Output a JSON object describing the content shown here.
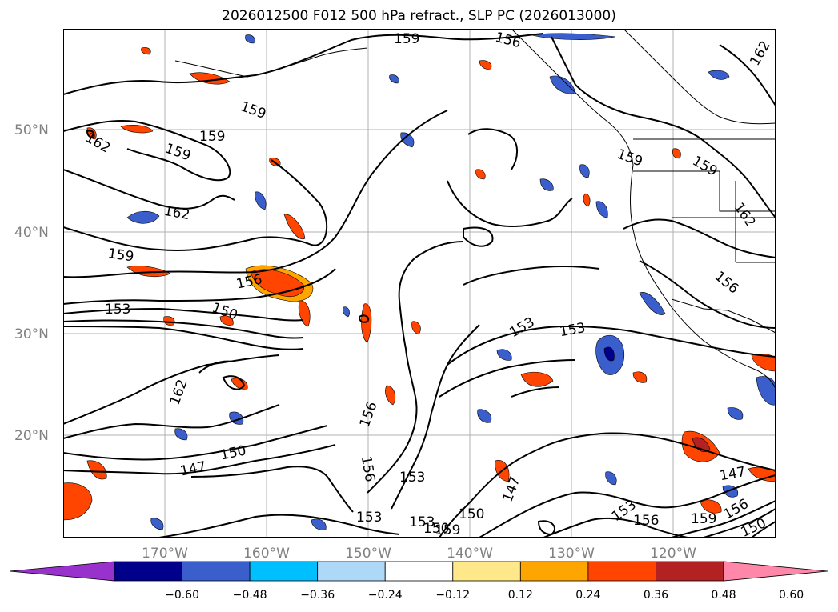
{
  "title": "2026012500 F012 500 hPa refract., SLP PC (2026013000)",
  "lat_labels": [
    "50°N",
    "40°N",
    "30°N",
    "20°N"
  ],
  "lon_labels": [
    "170°W",
    "160°W",
    "150°W",
    "140°W",
    "130°W",
    "120°W"
  ],
  "colorbar": {
    "ticks": [
      "−0.60",
      "−0.48",
      "−0.36",
      "−0.24",
      "−0.12",
      "0.12",
      "0.24",
      "0.36",
      "0.48",
      "0.60"
    ],
    "colors": [
      "#9932cc",
      "#00008b",
      "#3a5fcd",
      "#00bfff",
      "#add8f7",
      "#ffffff",
      "#ffe88a",
      "#ffa500",
      "#ff4500",
      "#b22222",
      "#ff88aa"
    ]
  },
  "contour_labels": [
    "159",
    "159",
    "159",
    "159",
    "162",
    "162",
    "162",
    "162",
    "159",
    "156",
    "153",
    "150",
    "159",
    "153",
    "150",
    "147",
    "150",
    "156",
    "156",
    "153",
    "147",
    "153",
    "153",
    "150",
    "156",
    "159",
    "156",
    "153",
    "147",
    "153",
    "156",
    "159",
    "162",
    "159",
    "156",
    "150"
  ],
  "fill_colors": {
    "orange_red": "#ff4500",
    "orange": "#ffa500",
    "yellow": "#ffe88a",
    "dark_blue": "#3a5fcd",
    "light_blue": "#00bfff",
    "navy": "#00008b"
  }
}
